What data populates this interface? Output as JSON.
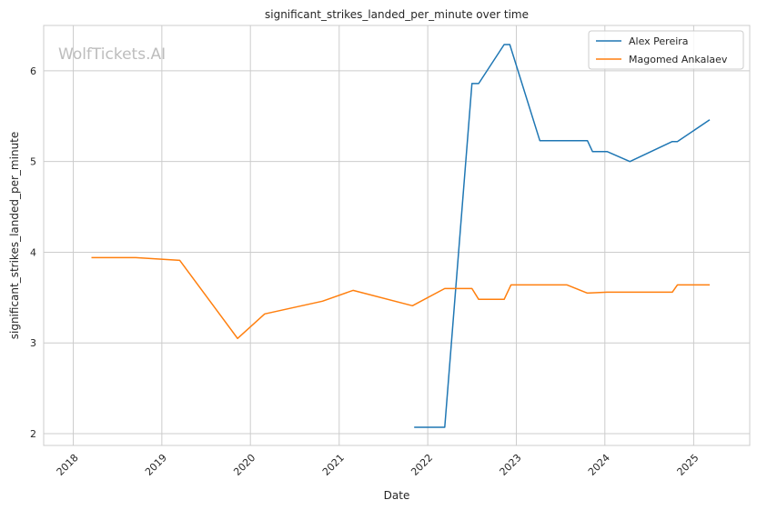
{
  "chart_data": {
    "type": "line",
    "title": "significant_strikes_landed_per_minute over time",
    "xlabel": "Date",
    "ylabel": "significant_strikes_landed_per_minute",
    "watermark": "WolfTickets.AI",
    "x_ticks": [
      "2018",
      "2019",
      "2020",
      "2021",
      "2022",
      "2023",
      "2024",
      "2025"
    ],
    "y_ticks": [
      2,
      3,
      4,
      5,
      6
    ],
    "xlim": [
      "2017-09-01",
      "2025-08-20"
    ],
    "ylim": [
      1.87,
      6.5
    ],
    "grid": true,
    "legend_position": "top-right",
    "series": [
      {
        "name": "Alex Pereira",
        "color": "#1f77b4",
        "points": [
          [
            "2021-11-06",
            2.07
          ],
          [
            "2022-03-12",
            2.07
          ],
          [
            "2022-07-02",
            5.86
          ],
          [
            "2022-07-30",
            5.86
          ],
          [
            "2022-11-12",
            6.29
          ],
          [
            "2022-12-05",
            6.29
          ],
          [
            "2023-04-08",
            5.23
          ],
          [
            "2023-10-21",
            5.23
          ],
          [
            "2023-11-11",
            5.11
          ],
          [
            "2024-01-10",
            5.11
          ],
          [
            "2024-04-13",
            5.0
          ],
          [
            "2024-10-05",
            5.22
          ],
          [
            "2024-10-26",
            5.22
          ],
          [
            "2025-03-08",
            5.46
          ]
        ]
      },
      {
        "name": "Magomed Ankalaev",
        "color": "#ff7f0e",
        "points": [
          [
            "2018-03-17",
            3.94
          ],
          [
            "2018-09-15",
            3.94
          ],
          [
            "2019-03-16",
            3.91
          ],
          [
            "2019-11-09",
            3.05
          ],
          [
            "2020-02-29",
            3.32
          ],
          [
            "2020-10-24",
            3.46
          ],
          [
            "2021-02-27",
            3.58
          ],
          [
            "2021-10-30",
            3.41
          ],
          [
            "2022-03-12",
            3.6
          ],
          [
            "2022-07-02",
            3.6
          ],
          [
            "2022-07-30",
            3.48
          ],
          [
            "2022-11-12",
            3.48
          ],
          [
            "2022-12-10",
            3.64
          ],
          [
            "2023-07-29",
            3.64
          ],
          [
            "2023-10-21",
            3.55
          ],
          [
            "2024-01-10",
            3.56
          ],
          [
            "2024-10-05",
            3.56
          ],
          [
            "2024-10-26",
            3.64
          ],
          [
            "2025-03-08",
            3.64
          ]
        ]
      }
    ]
  }
}
